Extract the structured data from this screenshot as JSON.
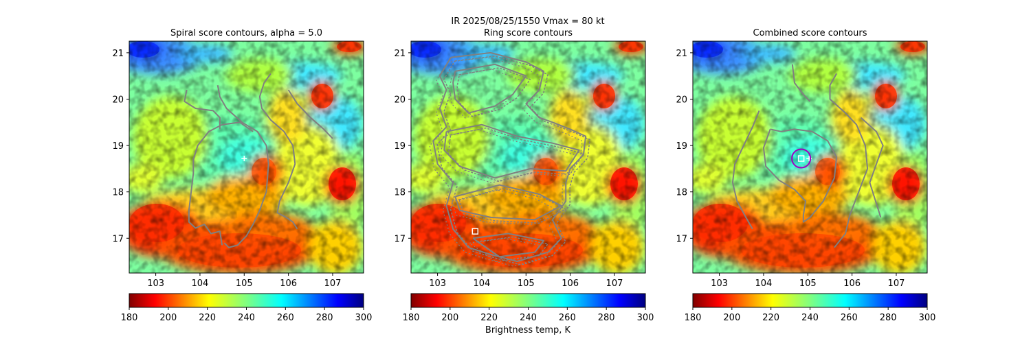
{
  "figure": {
    "suptitle_line": "IR  2025/08/25/1550    Vmax = 80 kt",
    "colorbar_label": "Brightness temp, K"
  },
  "chart_data": [
    {
      "type": "heatmap",
      "title": "Spiral score contours, alpha =  5.0",
      "x_ticks": [
        103,
        104,
        105,
        106,
        107
      ],
      "y_ticks": [
        17,
        18,
        19,
        20,
        21
      ],
      "xlim": [
        102.4,
        107.7
      ],
      "ylim": [
        16.25,
        21.25
      ],
      "colorbar": {
        "ticks": [
          180,
          200,
          220,
          240,
          260,
          280,
          300
        ],
        "range": [
          180,
          300
        ]
      },
      "markers": [
        {
          "kind": "cross",
          "lon": 105.0,
          "lat": 18.72,
          "color": "#ffffff"
        }
      ],
      "contours": [
        [
          [
            103.7,
            20.2
          ],
          [
            103.65,
            19.95
          ],
          [
            103.9,
            19.8
          ],
          [
            104.3,
            19.75
          ],
          [
            104.45,
            19.6
          ],
          [
            104.45,
            19.35
          ]
        ],
        [
          [
            104.4,
            20.3
          ],
          [
            104.45,
            20.05
          ],
          [
            104.6,
            19.8
          ],
          [
            104.95,
            19.5
          ],
          [
            105.3,
            19.3
          ],
          [
            105.5,
            19.0
          ],
          [
            105.55,
            18.6
          ],
          [
            105.5,
            18.0
          ],
          [
            105.35,
            17.6
          ],
          [
            105.2,
            17.3
          ],
          [
            105.05,
            17.05
          ],
          [
            104.85,
            16.85
          ],
          [
            104.65,
            16.8
          ],
          [
            104.55,
            16.9
          ]
        ],
        [
          [
            104.5,
            19.45
          ],
          [
            104.2,
            19.3
          ],
          [
            103.95,
            19.0
          ],
          [
            103.85,
            18.7
          ],
          [
            103.85,
            18.4
          ],
          [
            103.8,
            18.0
          ],
          [
            103.75,
            17.6
          ],
          [
            103.75,
            17.35
          ],
          [
            103.9,
            17.22
          ],
          [
            104.1,
            17.3
          ],
          [
            104.25,
            17.1
          ],
          [
            104.45,
            17.15
          ],
          [
            104.5,
            16.85
          ]
        ],
        [
          [
            104.5,
            19.45
          ],
          [
            104.9,
            19.5
          ],
          [
            105.2,
            19.3
          ]
        ],
        [
          [
            105.6,
            20.55
          ],
          [
            105.45,
            20.35
          ],
          [
            105.35,
            20.05
          ],
          [
            105.4,
            19.8
          ],
          [
            105.6,
            19.55
          ],
          [
            105.9,
            19.3
          ],
          [
            106.1,
            19.0
          ],
          [
            106.15,
            18.6
          ],
          [
            106.0,
            18.2
          ],
          [
            105.8,
            17.8
          ],
          [
            105.75,
            17.55
          ],
          [
            105.95,
            17.45
          ],
          [
            106.1,
            17.35
          ],
          [
            106.2,
            17.2
          ]
        ],
        [
          [
            106.0,
            20.2
          ],
          [
            106.2,
            19.9
          ],
          [
            106.5,
            19.6
          ],
          [
            106.8,
            19.35
          ],
          [
            107.0,
            19.15
          ]
        ]
      ]
    },
    {
      "type": "heatmap",
      "title": "Ring score contours",
      "x_ticks": [
        103,
        104,
        105,
        106,
        107
      ],
      "y_ticks": [
        17,
        18,
        19,
        20,
        21
      ],
      "xlim": [
        102.4,
        107.7
      ],
      "ylim": [
        16.25,
        21.25
      ],
      "colorbar": {
        "ticks": [
          180,
          200,
          220,
          240,
          260,
          280,
          300
        ],
        "range": [
          180,
          300
        ]
      },
      "markers": [
        {
          "kind": "square",
          "lon": 103.85,
          "lat": 17.15,
          "color": "#ffffff"
        }
      ],
      "contours": [
        [
          [
            103.3,
            20.9
          ],
          [
            104.2,
            21.0
          ],
          [
            105.0,
            20.8
          ],
          [
            105.4,
            20.6
          ],
          [
            105.3,
            20.2
          ],
          [
            105.0,
            19.9
          ],
          [
            105.3,
            19.6
          ],
          [
            105.6,
            19.5
          ],
          [
            106.0,
            19.35
          ],
          [
            106.35,
            19.2
          ],
          [
            106.3,
            18.8
          ],
          [
            106.0,
            18.5
          ],
          [
            105.9,
            18.2
          ],
          [
            105.9,
            17.8
          ],
          [
            105.6,
            17.4
          ],
          [
            105.8,
            17.0
          ],
          [
            105.5,
            16.7
          ],
          [
            104.8,
            16.5
          ],
          [
            104.2,
            16.65
          ],
          [
            103.7,
            16.8
          ],
          [
            103.35,
            17.2
          ],
          [
            103.2,
            17.7
          ],
          [
            103.35,
            18.2
          ],
          [
            103.0,
            18.6
          ],
          [
            102.9,
            19.1
          ],
          [
            103.2,
            19.4
          ],
          [
            103.05,
            19.8
          ],
          [
            103.2,
            20.2
          ],
          [
            103.05,
            20.5
          ],
          [
            103.3,
            20.9
          ]
        ],
        [
          [
            103.4,
            20.6
          ],
          [
            104.3,
            20.75
          ],
          [
            105.0,
            20.5
          ],
          [
            104.7,
            20.1
          ],
          [
            104.3,
            19.85
          ],
          [
            103.7,
            19.7
          ],
          [
            103.4,
            20.0
          ],
          [
            103.35,
            20.35
          ],
          [
            103.4,
            20.6
          ]
        ],
        [
          [
            103.2,
            19.3
          ],
          [
            104.0,
            19.45
          ],
          [
            104.8,
            19.2
          ],
          [
            105.6,
            19.05
          ],
          [
            106.2,
            18.9
          ],
          [
            105.9,
            18.45
          ],
          [
            105.1,
            18.5
          ],
          [
            104.3,
            18.3
          ],
          [
            103.5,
            18.55
          ],
          [
            103.15,
            18.9
          ],
          [
            103.2,
            19.3
          ]
        ],
        [
          [
            103.4,
            17.9
          ],
          [
            104.4,
            18.15
          ],
          [
            105.3,
            17.95
          ],
          [
            105.8,
            17.7
          ],
          [
            105.2,
            17.4
          ],
          [
            104.2,
            17.45
          ],
          [
            103.5,
            17.6
          ],
          [
            103.4,
            17.9
          ]
        ],
        [
          [
            103.8,
            17.0
          ],
          [
            104.6,
            17.1
          ],
          [
            105.4,
            16.95
          ],
          [
            105.2,
            16.7
          ],
          [
            104.4,
            16.6
          ],
          [
            103.8,
            17.0
          ]
        ]
      ]
    },
    {
      "type": "heatmap",
      "title": "Combined score contours",
      "x_ticks": [
        103,
        104,
        105,
        106,
        107
      ],
      "y_ticks": [
        17,
        18,
        19,
        20,
        21
      ],
      "xlim": [
        102.4,
        107.7
      ],
      "ylim": [
        16.25,
        21.25
      ],
      "colorbar": {
        "ticks": [
          180,
          200,
          220,
          240,
          260,
          280,
          300
        ],
        "range": [
          180,
          300
        ]
      },
      "markers": [
        {
          "kind": "square",
          "lon": 104.85,
          "lat": 18.72,
          "color": "#ffffff"
        },
        {
          "kind": "cross",
          "lon": 105.03,
          "lat": 18.72,
          "color": "#ffffff"
        },
        {
          "kind": "circle",
          "lon": 104.85,
          "lat": 18.72,
          "radius_deg": 0.2,
          "color": "#a000c0"
        }
      ],
      "contours": [
        [
          [
            103.9,
            19.75
          ],
          [
            103.75,
            19.4
          ],
          [
            103.55,
            19.0
          ],
          [
            103.35,
            18.6
          ],
          [
            103.3,
            18.2
          ],
          [
            103.4,
            17.8
          ],
          [
            103.6,
            17.45
          ],
          [
            103.75,
            17.2
          ]
        ],
        [
          [
            104.15,
            19.35
          ],
          [
            104.0,
            18.95
          ],
          [
            104.05,
            18.55
          ],
          [
            104.35,
            18.25
          ],
          [
            104.7,
            18.05
          ],
          [
            104.95,
            17.8
          ],
          [
            104.9,
            17.5
          ],
          [
            104.9,
            17.35
          ],
          [
            105.05,
            17.45
          ],
          [
            105.35,
            17.8
          ],
          [
            105.6,
            18.3
          ],
          [
            105.65,
            18.75
          ],
          [
            105.45,
            19.1
          ],
          [
            105.1,
            19.3
          ],
          [
            104.7,
            19.35
          ],
          [
            104.4,
            19.3
          ],
          [
            104.15,
            19.35
          ]
        ],
        [
          [
            104.65,
            20.75
          ],
          [
            104.7,
            20.35
          ],
          [
            104.9,
            20.1
          ],
          [
            105.05,
            19.95
          ]
        ],
        [
          [
            105.65,
            20.55
          ],
          [
            105.5,
            20.3
          ],
          [
            105.5,
            20.0
          ],
          [
            105.85,
            19.7
          ],
          [
            106.1,
            19.45
          ],
          [
            106.3,
            19.0
          ],
          [
            106.35,
            18.5
          ],
          [
            106.15,
            18.0
          ],
          [
            105.95,
            17.5
          ],
          [
            105.85,
            17.1
          ],
          [
            105.6,
            16.8
          ]
        ],
        [
          [
            106.2,
            19.6
          ],
          [
            106.55,
            19.3
          ],
          [
            106.7,
            19.0
          ],
          [
            106.55,
            18.6
          ],
          [
            106.4,
            18.2
          ],
          [
            106.5,
            17.9
          ],
          [
            106.6,
            17.6
          ],
          [
            106.65,
            17.45
          ]
        ]
      ]
    }
  ]
}
